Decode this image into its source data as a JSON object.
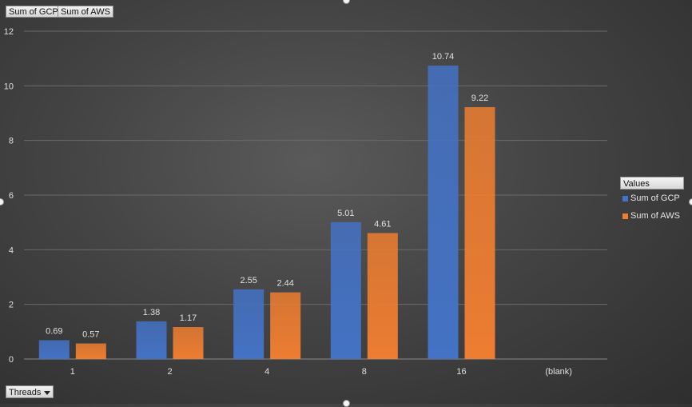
{
  "pivot_buttons": {
    "gcp": "Sum of GCP",
    "aws": "Sum of AWS",
    "threads": "Threads"
  },
  "colors": {
    "gcp": "#4472c4",
    "aws": "#ed7d31",
    "gridline": "#6a6a6a",
    "axis_text": "#e0e0e0"
  },
  "legend": {
    "title": "Values"
  },
  "chart_data": {
    "type": "bar",
    "categories": [
      "1",
      "2",
      "4",
      "8",
      "16",
      "(blank)"
    ],
    "series": [
      {
        "name": "Sum of GCP",
        "values": [
          0.69,
          1.38,
          2.55,
          5.01,
          10.74,
          null
        ]
      },
      {
        "name": "Sum of AWS",
        "values": [
          0.57,
          1.17,
          2.44,
          4.61,
          9.22,
          null
        ]
      }
    ],
    "ylim": [
      0,
      12
    ],
    "yticks": [
      0,
      2,
      4,
      6,
      8,
      10,
      12
    ],
    "grid": true,
    "legend_position": "right"
  }
}
